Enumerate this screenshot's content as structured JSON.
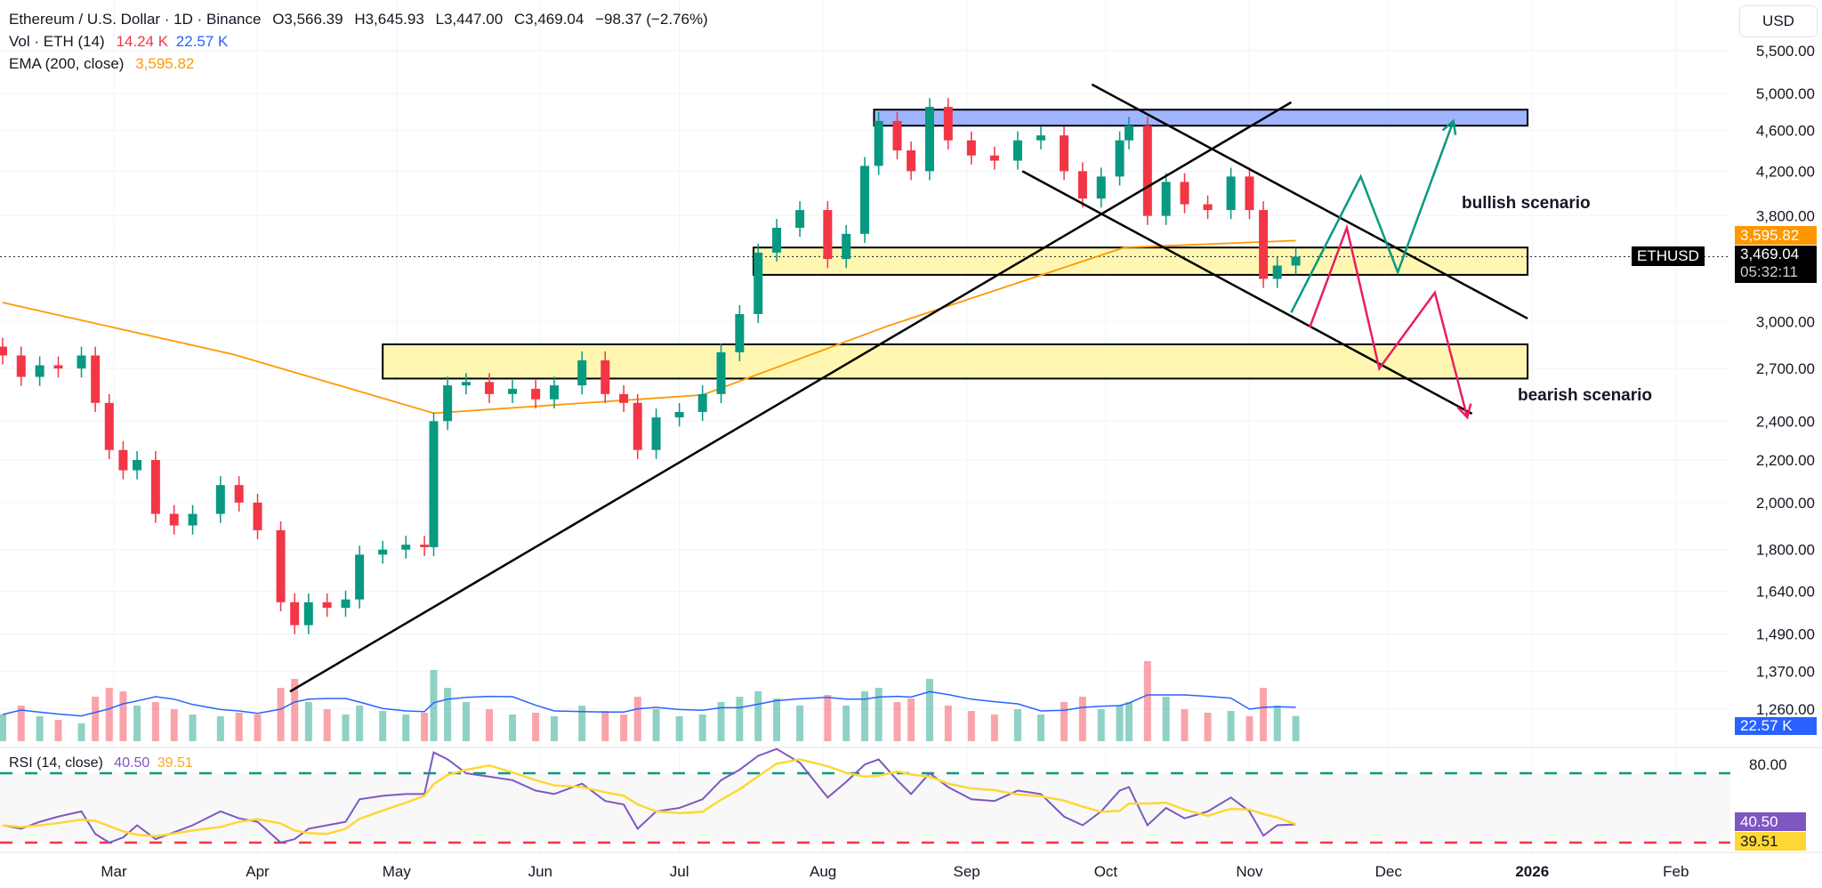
{
  "header": {
    "title": "Ethereum / U.S. Dollar · 1D · Binance",
    "open": "O3,566.39",
    "high": "H3,645.93",
    "low": "L3,447.00",
    "close": "C3,469.04",
    "change": "−98.37 (−2.76%)",
    "vol_label": "Vol · ETH (14)",
    "vol_value": "14.24 K",
    "vol_ma_value": "22.57 K",
    "ema_label": "EMA (200, close)",
    "ema_value": "3,595.82",
    "rsi_label": "RSI (14, close)",
    "rsi_value": "40.50",
    "rsi_ma_value": "39.51"
  },
  "axis": {
    "currency": "USD",
    "symbol_tag": "ETHUSD",
    "last_price": "3,469.04",
    "countdown": "05:32:11",
    "ema_tag": "3,595.82",
    "vol_ma_tag": "22.57 K",
    "rsi_tag": "40.50",
    "rsi_ma_tag": "39.51",
    "rsi_80": "80.00"
  },
  "annotations": {
    "bullish": "bullish scenario",
    "bearish": "bearish scenario"
  },
  "colors": {
    "up": "#089981",
    "down": "#f23645",
    "ema": "#ff9800",
    "vol_ma": "#2962ff",
    "rsi": "#7e57c2",
    "rsi_ma": "#fdd835",
    "zone_blue": "#8fa8ff",
    "zone_yellow": "#fff59d",
    "bull_path": "#089981",
    "bear_path": "#e91e63"
  },
  "chart_data": {
    "type": "candlestick",
    "scale": "log",
    "ylim": [
      1260,
      5500
    ],
    "yticks": [
      "5,500.00",
      "5,000.00",
      "4,600.00",
      "4,200.00",
      "3,800.00",
      "3,000.00",
      "2,700.00",
      "2,400.00",
      "2,200.00",
      "2,000.00",
      "1,800.00",
      "1,640.00",
      "1,490.00",
      "1,370.00",
      "1,260.00"
    ],
    "ytick_values": [
      5500,
      5000,
      4600,
      4200,
      3800,
      3000,
      2700,
      2400,
      2200,
      2000,
      1800,
      1640,
      1490,
      1370,
      1260
    ],
    "xticks": [
      {
        "label": "Mar",
        "date": "2025-03-01"
      },
      {
        "label": "Apr",
        "date": "2025-04-01"
      },
      {
        "label": "May",
        "date": "2025-05-01"
      },
      {
        "label": "Jun",
        "date": "2025-06-01"
      },
      {
        "label": "Jul",
        "date": "2025-07-01"
      },
      {
        "label": "Aug",
        "date": "2025-08-01"
      },
      {
        "label": "Sep",
        "date": "2025-09-01"
      },
      {
        "label": "Oct",
        "date": "2025-10-01"
      },
      {
        "label": "Nov",
        "date": "2025-11-01"
      },
      {
        "label": "Dec",
        "date": "2025-12-01"
      },
      {
        "label": "2026",
        "date": "2026-01-01"
      },
      {
        "label": "Feb",
        "date": "2026-02-01"
      }
    ],
    "series": [
      [
        "2025-02-05",
        2780,
        15,
        40
      ],
      [
        "2025-02-09",
        2650,
        20,
        38
      ],
      [
        "2025-02-13",
        2720,
        14,
        42
      ],
      [
        "2025-02-17",
        2700,
        12,
        45
      ],
      [
        "2025-02-22",
        2780,
        10,
        48
      ],
      [
        "2025-02-25",
        2500,
        25,
        35
      ],
      [
        "2025-02-28",
        2250,
        30,
        30
      ],
      [
        "2025-03-03",
        2150,
        28,
        33
      ],
      [
        "2025-03-06",
        2200,
        20,
        40
      ],
      [
        "2025-03-10",
        1950,
        22,
        32
      ],
      [
        "2025-03-14",
        1900,
        18,
        36
      ],
      [
        "2025-03-18",
        1950,
        15,
        40
      ],
      [
        "2025-03-24",
        2080,
        14,
        48
      ],
      [
        "2025-03-28",
        2000,
        16,
        44
      ],
      [
        "2025-04-01",
        1880,
        15,
        42
      ],
      [
        "2025-04-06",
        1600,
        30,
        30
      ],
      [
        "2025-04-09",
        1520,
        35,
        32
      ],
      [
        "2025-04-12",
        1600,
        22,
        38
      ],
      [
        "2025-04-16",
        1580,
        18,
        40
      ],
      [
        "2025-04-20",
        1610,
        15,
        42
      ],
      [
        "2025-04-23",
        1780,
        20,
        55
      ],
      [
        "2025-04-28",
        1800,
        17,
        57
      ],
      [
        "2025-05-03",
        1820,
        15,
        58
      ],
      [
        "2025-05-07",
        1810,
        16,
        58
      ],
      [
        "2025-05-09",
        2400,
        40,
        82
      ],
      [
        "2025-05-12",
        2600,
        30,
        78
      ],
      [
        "2025-05-16",
        2620,
        22,
        70
      ],
      [
        "2025-05-21",
        2550,
        18,
        68
      ],
      [
        "2025-05-26",
        2580,
        15,
        66
      ],
      [
        "2025-05-31",
        2520,
        16,
        60
      ],
      [
        "2025-06-04",
        2600,
        14,
        58
      ],
      [
        "2025-06-10",
        2750,
        20,
        64
      ],
      [
        "2025-06-15",
        2550,
        17,
        54
      ],
      [
        "2025-06-19",
        2500,
        15,
        52
      ],
      [
        "2025-06-22",
        2250,
        25,
        38
      ],
      [
        "2025-06-26",
        2420,
        18,
        48
      ],
      [
        "2025-07-01",
        2450,
        14,
        50
      ],
      [
        "2025-07-06",
        2550,
        15,
        55
      ],
      [
        "2025-07-10",
        2800,
        22,
        66
      ],
      [
        "2025-07-14",
        3050,
        25,
        72
      ],
      [
        "2025-07-18",
        3500,
        28,
        80
      ],
      [
        "2025-07-22",
        3700,
        24,
        84
      ],
      [
        "2025-07-27",
        3850,
        20,
        76
      ],
      [
        "2025-08-02",
        3450,
        26,
        56
      ],
      [
        "2025-08-06",
        3650,
        20,
        65
      ],
      [
        "2025-08-10",
        4250,
        28,
        75
      ],
      [
        "2025-08-13",
        4700,
        30,
        78
      ],
      [
        "2025-08-17",
        4400,
        22,
        66
      ],
      [
        "2025-08-20",
        4200,
        24,
        58
      ],
      [
        "2025-08-24",
        4850,
        35,
        70
      ],
      [
        "2025-08-28",
        4500,
        20,
        62
      ],
      [
        "2025-09-02",
        4350,
        17,
        55
      ],
      [
        "2025-09-07",
        4300,
        15,
        54
      ],
      [
        "2025-09-12",
        4500,
        18,
        60
      ],
      [
        "2025-09-17",
        4550,
        15,
        58
      ],
      [
        "2025-09-22",
        4200,
        22,
        45
      ],
      [
        "2025-09-26",
        3950,
        25,
        40
      ],
      [
        "2025-09-30",
        4150,
        18,
        48
      ],
      [
        "2025-10-04",
        4500,
        20,
        60
      ],
      [
        "2025-10-06",
        4650,
        22,
        62
      ],
      [
        "2025-10-10",
        3800,
        45,
        40
      ],
      [
        "2025-10-14",
        4100,
        25,
        50
      ],
      [
        "2025-10-18",
        3900,
        18,
        44
      ],
      [
        "2025-10-23",
        3850,
        16,
        48
      ],
      [
        "2025-10-28",
        4150,
        17,
        56
      ],
      [
        "2025-11-01",
        3850,
        14,
        48
      ],
      [
        "2025-11-04",
        3300,
        30,
        34
      ],
      [
        "2025-11-07",
        3400,
        20,
        40
      ],
      [
        "2025-11-11",
        3469.04,
        14.24,
        40.5
      ]
    ],
    "series_fields": [
      "date",
      "close",
      "volume_k",
      "rsi"
    ],
    "ema_200": [
      [
        "2025-02-05",
        3130
      ],
      [
        "2025-03-27",
        2785
      ],
      [
        "2025-05-09",
        2443
      ],
      [
        "2025-07-06",
        2545
      ],
      [
        "2025-08-15",
        2970
      ],
      [
        "2025-10-05",
        3540
      ],
      [
        "2025-11-11",
        3595.82
      ]
    ],
    "rsi_levels": [
      70,
      30
    ],
    "zones": [
      {
        "color": "blue",
        "from": "2025-08-12",
        "to": "2025-12-31",
        "low": 4650,
        "high": 4820
      },
      {
        "color": "yellow",
        "from": "2025-07-17",
        "to": "2025-12-31",
        "low": 3330,
        "high": 3540
      },
      {
        "color": "yellow",
        "from": "2025-04-28",
        "to": "2025-12-31",
        "low": 2640,
        "high": 2850
      }
    ],
    "trendlines": [
      [
        [
          "2025-04-08",
          1310
        ],
        [
          "2025-11-10",
          4900
        ]
      ],
      [
        [
          "2025-09-28",
          5100
        ],
        [
          "2025-12-31",
          3020
        ]
      ],
      [
        [
          "2025-09-13",
          4200
        ],
        [
          "2025-12-19",
          2440
        ]
      ]
    ],
    "bull_path": [
      [
        "2025-11-10",
        3060
      ],
      [
        "2025-11-25",
        4150
      ],
      [
        "2025-12-03",
        3350
      ],
      [
        "2025-12-15",
        4700
      ]
    ],
    "bear_path": [
      [
        "2025-11-14",
        2960
      ],
      [
        "2025-11-22",
        3700
      ],
      [
        "2025-11-29",
        2700
      ],
      [
        "2025-12-11",
        3200
      ],
      [
        "2025-12-18",
        2420
      ]
    ]
  }
}
